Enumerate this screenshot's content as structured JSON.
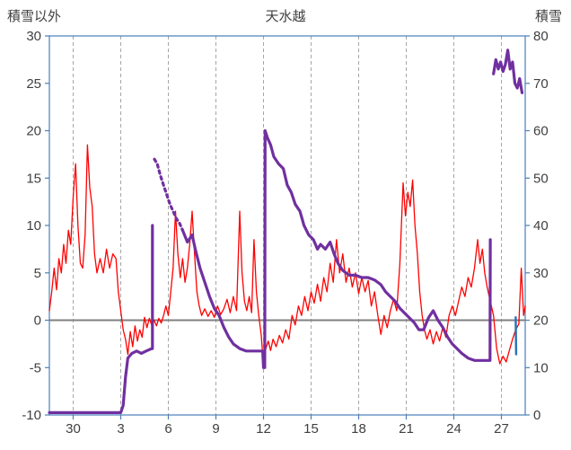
{
  "chart_data": {
    "type": "line",
    "title": "天水越",
    "left_axis": {
      "label": "積雪以外",
      "min": -10,
      "max": 30,
      "ticks": [
        30,
        25,
        20,
        15,
        10,
        5,
        0,
        -5,
        -10
      ]
    },
    "right_axis": {
      "label": "積雪",
      "min": 0,
      "max": 80,
      "ticks": [
        80,
        70,
        60,
        50,
        40,
        30,
        20,
        10,
        0
      ]
    },
    "x_axis": {
      "min": 0,
      "max": 30,
      "tick_labels": [
        "30",
        "3",
        "6",
        "9",
        "12",
        "15",
        "18",
        "21",
        "24",
        "27"
      ],
      "tick_positions": [
        1.5,
        4.5,
        7.5,
        10.5,
        13.5,
        16.5,
        19.5,
        22.5,
        25.5,
        28.5
      ],
      "gridlines": true,
      "gridline_style": "dashed"
    },
    "zero_line": {
      "axis": "left",
      "value": 0,
      "color": "#808080"
    },
    "colors": {
      "border": "#4a7ebb",
      "gridline": "#a6a6a6",
      "tick_text": "#3f3f3f"
    },
    "series": [
      {
        "name": "temperature",
        "axis": "left",
        "color": "#ff0000",
        "width": 1.3,
        "style": "solid",
        "points": [
          [
            0,
            1
          ],
          [
            0.15,
            3
          ],
          [
            0.3,
            5.5
          ],
          [
            0.45,
            3.2
          ],
          [
            0.6,
            6.5
          ],
          [
            0.75,
            5
          ],
          [
            0.9,
            8
          ],
          [
            1.05,
            6
          ],
          [
            1.2,
            9.5
          ],
          [
            1.35,
            8
          ],
          [
            1.5,
            13
          ],
          [
            1.65,
            16.5
          ],
          [
            1.8,
            10
          ],
          [
            1.95,
            6
          ],
          [
            2.1,
            5.5
          ],
          [
            2.25,
            9
          ],
          [
            2.4,
            18.5
          ],
          [
            2.55,
            14
          ],
          [
            2.7,
            12
          ],
          [
            2.85,
            7
          ],
          [
            3,
            5
          ],
          [
            3.2,
            6.5
          ],
          [
            3.4,
            5
          ],
          [
            3.6,
            7.5
          ],
          [
            3.8,
            5.5
          ],
          [
            4,
            7
          ],
          [
            4.2,
            6.5
          ],
          [
            4.35,
            3
          ],
          [
            4.5,
            1
          ],
          [
            4.65,
            -1
          ],
          [
            4.8,
            -2
          ],
          [
            4.95,
            -3.6
          ],
          [
            5.1,
            -1.2
          ],
          [
            5.25,
            -2.8
          ],
          [
            5.4,
            -0.6
          ],
          [
            5.55,
            -2.2
          ],
          [
            5.7,
            -1
          ],
          [
            5.85,
            -1.8
          ],
          [
            6,
            0.3
          ],
          [
            6.15,
            -0.8
          ],
          [
            6.3,
            0.2
          ],
          [
            6.45,
            -0.5
          ],
          [
            6.6,
            0
          ],
          [
            6.75,
            -0.6
          ],
          [
            6.9,
            0.2
          ],
          [
            7.05,
            -0.3
          ],
          [
            7.2,
            0.5
          ],
          [
            7.35,
            1.5
          ],
          [
            7.5,
            0.5
          ],
          [
            7.65,
            3
          ],
          [
            7.8,
            5.5
          ],
          [
            7.95,
            11.5
          ],
          [
            8.1,
            7
          ],
          [
            8.25,
            4.5
          ],
          [
            8.4,
            6.5
          ],
          [
            8.55,
            4
          ],
          [
            8.7,
            5.5
          ],
          [
            8.85,
            8
          ],
          [
            9,
            11.5
          ],
          [
            9.15,
            7
          ],
          [
            9.3,
            3
          ],
          [
            9.45,
            1.5
          ],
          [
            9.6,
            0.5
          ],
          [
            9.8,
            1.2
          ],
          [
            10,
            0.4
          ],
          [
            10.2,
            1
          ],
          [
            10.4,
            0.3
          ],
          [
            10.6,
            1.5
          ],
          [
            10.8,
            0.6
          ],
          [
            11,
            1.2
          ],
          [
            11.2,
            2.2
          ],
          [
            11.4,
            0.8
          ],
          [
            11.6,
            2.5
          ],
          [
            11.8,
            1
          ],
          [
            12,
            11.5
          ],
          [
            12.15,
            5
          ],
          [
            12.3,
            2
          ],
          [
            12.45,
            1
          ],
          [
            12.6,
            2.5
          ],
          [
            12.75,
            0.8
          ],
          [
            12.9,
            8.5
          ],
          [
            13.05,
            3
          ],
          [
            13.2,
            0.5
          ],
          [
            13.35,
            -1.5
          ],
          [
            13.5,
            -4.8
          ],
          [
            13.65,
            -3
          ],
          [
            13.8,
            -2.2
          ],
          [
            13.95,
            -3.2
          ],
          [
            14.1,
            -2
          ],
          [
            14.3,
            -2.8
          ],
          [
            14.5,
            -1.6
          ],
          [
            14.7,
            -2.4
          ],
          [
            14.9,
            -1
          ],
          [
            15.1,
            -2
          ],
          [
            15.3,
            0.5
          ],
          [
            15.5,
            -0.5
          ],
          [
            15.7,
            1.5
          ],
          [
            15.9,
            0.5
          ],
          [
            16.1,
            2.5
          ],
          [
            16.3,
            1
          ],
          [
            16.5,
            3
          ],
          [
            16.7,
            1.8
          ],
          [
            16.9,
            3.8
          ],
          [
            17.1,
            2
          ],
          [
            17.3,
            4.5
          ],
          [
            17.5,
            3
          ],
          [
            17.7,
            6
          ],
          [
            17.9,
            4
          ],
          [
            18.1,
            8.5
          ],
          [
            18.3,
            5
          ],
          [
            18.5,
            7
          ],
          [
            18.7,
            4
          ],
          [
            18.9,
            5.5
          ],
          [
            19.1,
            3.5
          ],
          [
            19.3,
            5
          ],
          [
            19.5,
            2.8
          ],
          [
            19.7,
            4.5
          ],
          [
            19.9,
            3
          ],
          [
            20.1,
            4.2
          ],
          [
            20.3,
            1.5
          ],
          [
            20.5,
            3
          ],
          [
            20.7,
            0.6
          ],
          [
            20.9,
            -1.5
          ],
          [
            21.1,
            0.5
          ],
          [
            21.3,
            -0.8
          ],
          [
            21.5,
            1
          ],
          [
            21.7,
            2.2
          ],
          [
            21.9,
            1
          ],
          [
            22.1,
            6
          ],
          [
            22.3,
            14.5
          ],
          [
            22.45,
            11
          ],
          [
            22.6,
            13.5
          ],
          [
            22.75,
            12
          ],
          [
            22.9,
            14.8
          ],
          [
            23.05,
            10
          ],
          [
            23.2,
            7
          ],
          [
            23.35,
            3
          ],
          [
            23.5,
            0.5
          ],
          [
            23.65,
            -1
          ],
          [
            23.8,
            -2
          ],
          [
            24,
            -1
          ],
          [
            24.2,
            -2.5
          ],
          [
            24.4,
            -1.2
          ],
          [
            24.6,
            -2.2
          ],
          [
            24.8,
            -0.8
          ],
          [
            25,
            -1.8
          ],
          [
            25.2,
            0.5
          ],
          [
            25.4,
            1.5
          ],
          [
            25.6,
            0.5
          ],
          [
            25.8,
            2
          ],
          [
            26,
            3.5
          ],
          [
            26.2,
            2.5
          ],
          [
            26.4,
            4.5
          ],
          [
            26.6,
            3.5
          ],
          [
            26.8,
            5.5
          ],
          [
            27,
            8.5
          ],
          [
            27.15,
            6
          ],
          [
            27.3,
            7.5
          ],
          [
            27.45,
            5
          ],
          [
            27.6,
            3.5
          ],
          [
            27.8,
            2
          ],
          [
            28,
            0.5
          ],
          [
            28.2,
            -3
          ],
          [
            28.4,
            -4.6
          ],
          [
            28.6,
            -3.8
          ],
          [
            28.8,
            -4.4
          ],
          [
            29,
            -3.2
          ],
          [
            29.2,
            -2
          ],
          [
            29.4,
            -1
          ],
          [
            29.6,
            -0.4
          ],
          [
            29.75,
            5.5
          ],
          [
            29.9,
            0.5
          ],
          [
            30,
            1.5
          ]
        ]
      },
      {
        "name": "snow-depth",
        "axis": "right",
        "color": "#7030a0",
        "width": 3.2,
        "segments": [
          {
            "style": "solid",
            "points": [
              [
                0,
                0.5
              ],
              [
                4.5,
                0.5
              ],
              [
                4.65,
                2
              ],
              [
                4.8,
                8
              ],
              [
                4.95,
                12
              ],
              [
                5.2,
                13
              ],
              [
                5.5,
                13.5
              ],
              [
                5.8,
                13
              ],
              [
                6.1,
                13.5
              ],
              [
                6.45,
                14
              ],
              [
                6.5,
                14
              ],
              [
                6.5,
                40
              ]
            ]
          },
          {
            "style": "dashed",
            "points": [
              [
                6.62,
                54
              ],
              [
                6.8,
                53
              ],
              [
                7,
                50.5
              ],
              [
                7.2,
                48.5
              ],
              [
                7.4,
                46.5
              ],
              [
                7.6,
                44.5
              ],
              [
                7.8,
                43
              ],
              [
                8,
                41.5
              ],
              [
                8.2,
                40.5
              ],
              [
                8.4,
                39
              ]
            ]
          },
          {
            "style": "solid",
            "points": [
              [
                8.4,
                39
              ],
              [
                8.7,
                36.5
              ],
              [
                9,
                38
              ],
              [
                9.2,
                35
              ],
              [
                9.5,
                31
              ],
              [
                9.8,
                28
              ],
              [
                10.1,
                25
              ],
              [
                10.4,
                22.5
              ],
              [
                10.7,
                21
              ],
              [
                11,
                18.5
              ],
              [
                11.3,
                16.5
              ],
              [
                11.6,
                15
              ],
              [
                12,
                14
              ],
              [
                12.4,
                13.5
              ],
              [
                12.8,
                13.5
              ],
              [
                13.2,
                13.5
              ],
              [
                13.45,
                13.5
              ],
              [
                13.5,
                10
              ],
              [
                13.58,
                10
              ],
              [
                13.6,
                60
              ],
              [
                13.75,
                58.5
              ],
              [
                13.95,
                57
              ],
              [
                14.15,
                54.5
              ],
              [
                14.45,
                53
              ],
              [
                14.75,
                52
              ],
              [
                15,
                48.5
              ],
              [
                15.25,
                47
              ],
              [
                15.5,
                44.5
              ],
              [
                15.8,
                43
              ],
              [
                16.05,
                40
              ],
              [
                16.35,
                38
              ],
              [
                16.65,
                37
              ],
              [
                16.9,
                35
              ],
              [
                17.1,
                36
              ],
              [
                17.4,
                35
              ],
              [
                17.7,
                36.5
              ],
              [
                17.95,
                34
              ],
              [
                18.2,
                32
              ],
              [
                18.5,
                30.5
              ],
              [
                18.9,
                29.5
              ],
              [
                19.3,
                29.5
              ],
              [
                19.7,
                29
              ],
              [
                20.1,
                29
              ],
              [
                20.5,
                28.5
              ],
              [
                20.9,
                27.5
              ],
              [
                21.2,
                26
              ],
              [
                21.5,
                25
              ],
              [
                21.8,
                24
              ],
              [
                22.1,
                22.5
              ],
              [
                22.4,
                21.5
              ],
              [
                22.7,
                20.5
              ],
              [
                23,
                19.5
              ],
              [
                23.3,
                18
              ],
              [
                23.6,
                18
              ],
              [
                23.9,
                20.5
              ],
              [
                24.2,
                22
              ],
              [
                24.5,
                20
              ],
              [
                24.8,
                18.5
              ],
              [
                25.1,
                16.5
              ],
              [
                25.4,
                15
              ],
              [
                25.7,
                14
              ],
              [
                26,
                13
              ],
              [
                26.4,
                12
              ],
              [
                26.8,
                11.5
              ],
              [
                27.2,
                11.5
              ],
              [
                27.6,
                11.5
              ],
              [
                27.78,
                11.5
              ],
              [
                27.8,
                37
              ]
            ]
          },
          {
            "style": "solid",
            "points": [
              [
                28,
                72
              ],
              [
                28.15,
                75
              ],
              [
                28.3,
                73
              ],
              [
                28.45,
                74.5
              ],
              [
                28.6,
                72.5
              ],
              [
                28.75,
                74
              ],
              [
                28.9,
                77
              ],
              [
                29.05,
                73
              ],
              [
                29.2,
                74.5
              ],
              [
                29.35,
                70
              ],
              [
                29.5,
                69
              ],
              [
                29.65,
                71
              ],
              [
                29.8,
                68
              ]
            ]
          }
        ]
      },
      {
        "name": "snowfall-segment",
        "axis": "left",
        "color": "#2e75b6",
        "width": 2.5,
        "style": "solid",
        "points": [
          [
            29.4,
            0.3
          ],
          [
            29.43,
            -3.6
          ]
        ]
      }
    ]
  }
}
